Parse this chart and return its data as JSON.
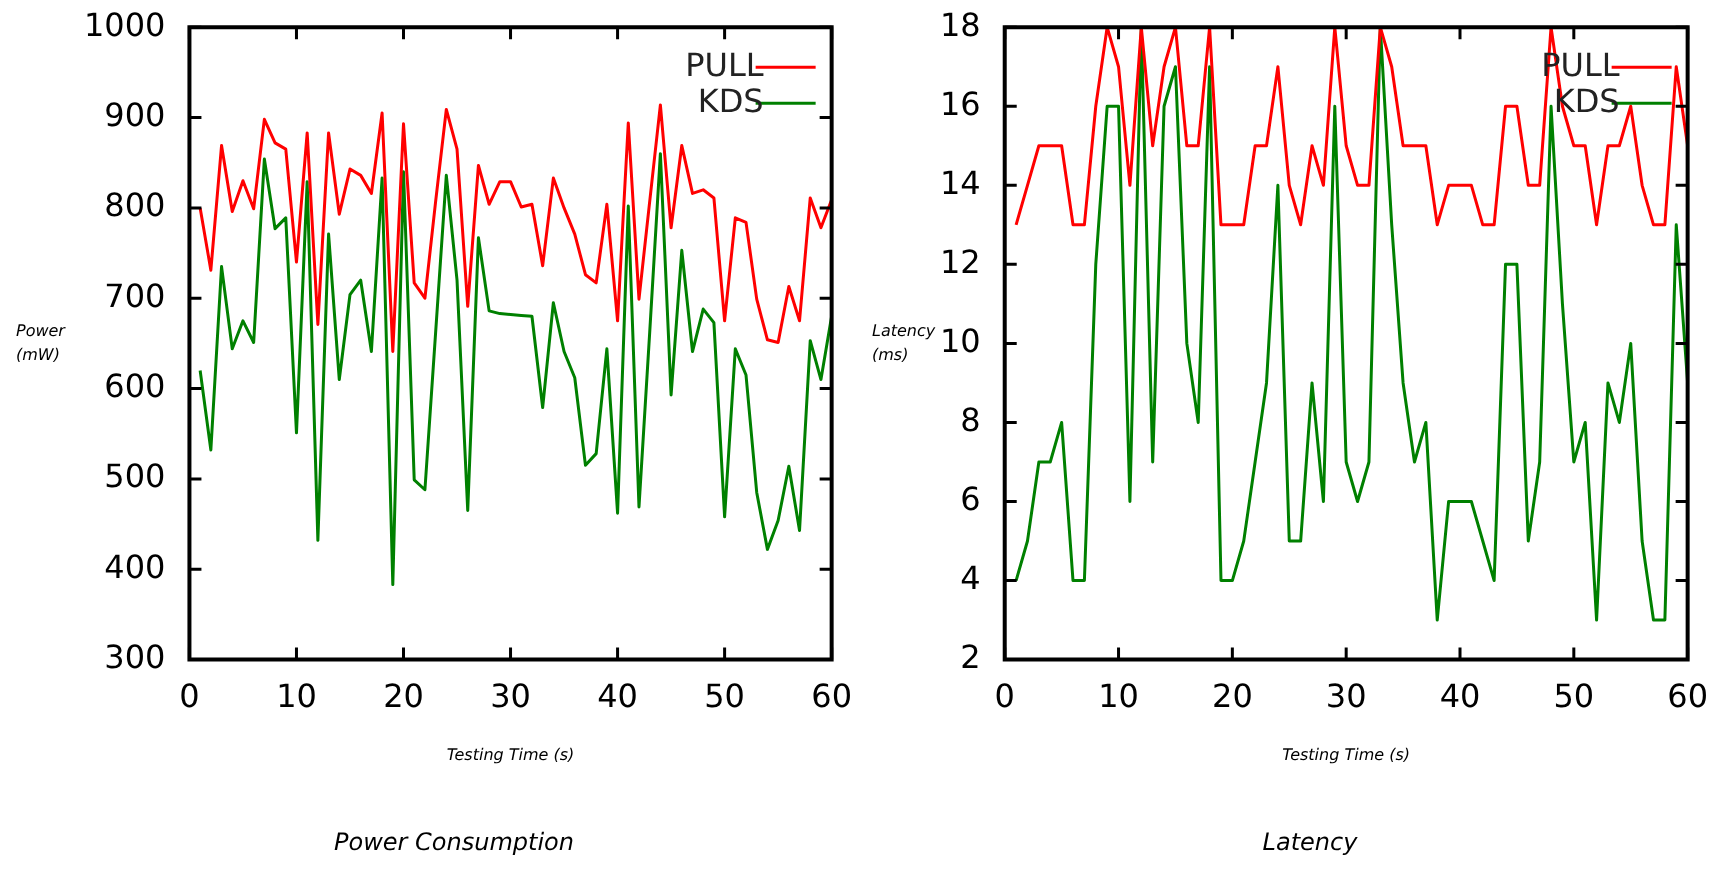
{
  "chart_data": [
    {
      "type": "line",
      "title": "Power Consumption",
      "xlabel": "Testing Time (s)",
      "ylabel": "Power (mW)",
      "x": [
        1,
        2,
        3,
        4,
        5,
        6,
        7,
        8,
        9,
        10,
        11,
        12,
        13,
        14,
        15,
        16,
        17,
        18,
        19,
        20,
        21,
        22,
        23,
        24,
        25,
        26,
        27,
        28,
        29,
        30,
        31,
        32,
        33,
        34,
        35,
        36,
        37,
        38,
        39,
        40,
        41,
        42,
        43,
        44,
        45,
        46,
        47,
        48,
        49,
        50,
        51,
        52,
        53,
        54,
        55,
        56,
        57,
        58,
        59,
        60
      ],
      "series": [
        {
          "name": "PULL",
          "color": "#ff0000",
          "values": [
            800,
            731,
            869,
            796,
            830,
            799,
            898,
            872,
            865,
            740,
            883,
            671,
            883,
            793,
            843,
            836,
            816,
            905,
            641,
            893,
            717,
            700,
            807,
            909,
            865,
            691,
            847,
            804,
            829,
            829,
            801,
            804,
            736,
            833,
            800,
            771,
            726,
            717,
            804,
            675,
            894,
            699,
            807,
            914,
            778,
            869,
            816,
            820,
            811,
            675,
            789,
            784,
            699,
            654,
            651,
            713,
            675,
            811,
            778,
            809
          ]
        },
        {
          "name": "KDS",
          "color": "#008000",
          "values": [
            620,
            532,
            735,
            644,
            675,
            651,
            854,
            777,
            789,
            551,
            829,
            432,
            771,
            610,
            704,
            720,
            641,
            833,
            383,
            840,
            499,
            488,
            662,
            836,
            720,
            465,
            767,
            686,
            683,
            682,
            681,
            680,
            579,
            695,
            641,
            612,
            515,
            528,
            644,
            462,
            802,
            469,
            662,
            860,
            593,
            753,
            641,
            688,
            673,
            458,
            644,
            615,
            485,
            422,
            454,
            514,
            443,
            653,
            610,
            680
          ]
        }
      ],
      "xlim": [
        0,
        60
      ],
      "xticks": [
        0,
        10,
        20,
        30,
        40,
        50,
        60
      ],
      "ylim": [
        300,
        1000
      ],
      "yticks": [
        300,
        400,
        500,
        600,
        700,
        800,
        900,
        1000
      ],
      "grid": false,
      "legend": "top right",
      "marker": "none",
      "line_style": "solid"
    },
    {
      "type": "line",
      "title": "Latency",
      "xlabel": "Testing Time (s)",
      "ylabel": "Latency (ms)",
      "x": [
        1,
        2,
        3,
        4,
        5,
        6,
        7,
        8,
        9,
        10,
        11,
        12,
        13,
        14,
        15,
        16,
        17,
        18,
        19,
        20,
        21,
        22,
        23,
        24,
        25,
        26,
        27,
        28,
        29,
        30,
        31,
        32,
        33,
        34,
        35,
        36,
        37,
        38,
        39,
        40,
        41,
        42,
        43,
        44,
        45,
        46,
        47,
        48,
        49,
        50,
        51,
        52,
        53,
        54,
        55,
        56,
        57,
        58,
        59,
        60
      ],
      "series": [
        {
          "name": "PULL",
          "color": "#ff0000",
          "values": [
            13,
            14,
            15,
            15,
            15,
            13,
            13,
            16,
            18,
            17,
            14,
            18,
            15,
            17,
            18,
            15,
            15,
            18,
            13,
            13,
            13,
            15,
            15,
            17,
            14,
            13,
            15,
            14,
            18,
            15,
            14,
            14,
            18,
            17,
            15,
            15,
            15,
            13,
            14,
            14,
            14,
            13,
            13,
            16,
            16,
            14,
            14,
            18,
            16,
            15,
            15,
            13,
            15,
            15,
            16,
            14,
            13,
            13,
            17,
            15
          ]
        },
        {
          "name": "KDS",
          "color": "#008000",
          "values": [
            4,
            5,
            7,
            7,
            8,
            4,
            4,
            12,
            16,
            16,
            6,
            18,
            7,
            16,
            17,
            10,
            8,
            17,
            4,
            4,
            5,
            7,
            9,
            14,
            5,
            5,
            9,
            6,
            16,
            7,
            6,
            7,
            18,
            13,
            9,
            7,
            8,
            3,
            6,
            6,
            6,
            5,
            4,
            12,
            12,
            5,
            7,
            16,
            11,
            7,
            8,
            3,
            9,
            8,
            10,
            5,
            3,
            3,
            13,
            9
          ]
        }
      ],
      "xlim": [
        0,
        60
      ],
      "xticks": [
        0,
        10,
        20,
        30,
        40,
        50,
        60
      ],
      "ylim": [
        2,
        18
      ],
      "yticks": [
        2,
        4,
        6,
        8,
        10,
        12,
        14,
        16,
        18
      ],
      "grid": false,
      "legend": "top right",
      "marker": "none",
      "line_style": "solid"
    }
  ]
}
